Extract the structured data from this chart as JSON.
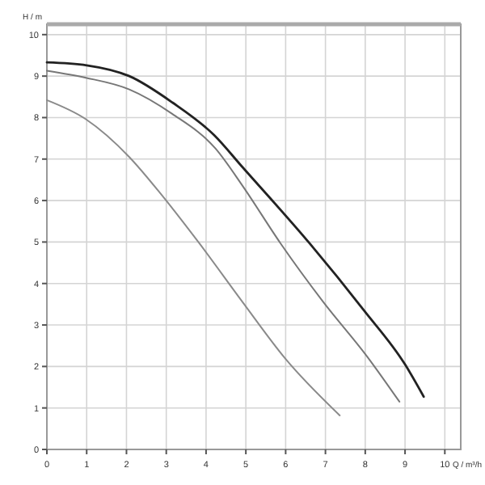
{
  "chart_data": {
    "type": "line",
    "xlabel": "Q / m³/h",
    "ylabel": "H / m",
    "xlim": [
      0,
      10.4
    ],
    "ylim": [
      0,
      10.25
    ],
    "xticks": [
      0,
      1,
      2,
      3,
      4,
      5,
      6,
      7,
      8,
      9,
      10
    ],
    "yticks": [
      0,
      1,
      2,
      3,
      4,
      5,
      6,
      7,
      8,
      9,
      10
    ],
    "grid": true,
    "marker": "none",
    "line_style": "solid",
    "series": [
      {
        "color": "#222222",
        "x": [
          0,
          1,
          2.07,
          3.16,
          4.2,
          4.92,
          6.6,
          7.97,
          9.0,
          9.47
        ],
        "values": [
          9.33,
          9.26,
          9.0,
          8.36,
          7.58,
          6.8,
          4.97,
          3.35,
          2.05,
          1.27
        ]
      },
      {
        "color": "#777777",
        "x": [
          0,
          0.98,
          2.07,
          3.15,
          4.24,
          4.92,
          5.87,
          6.95,
          8.04,
          8.86
        ],
        "values": [
          9.13,
          8.96,
          8.68,
          8.09,
          7.25,
          6.35,
          4.97,
          3.55,
          2.25,
          1.15
        ]
      },
      {
        "color": "#8a8a8a",
        "x": [
          0,
          0.98,
          2.07,
          2.88,
          3.83,
          4.92,
          6.0,
          7.36
        ],
        "values": [
          8.42,
          7.96,
          7.05,
          6.14,
          4.97,
          3.55,
          2.18,
          0.82
        ]
      }
    ]
  }
}
